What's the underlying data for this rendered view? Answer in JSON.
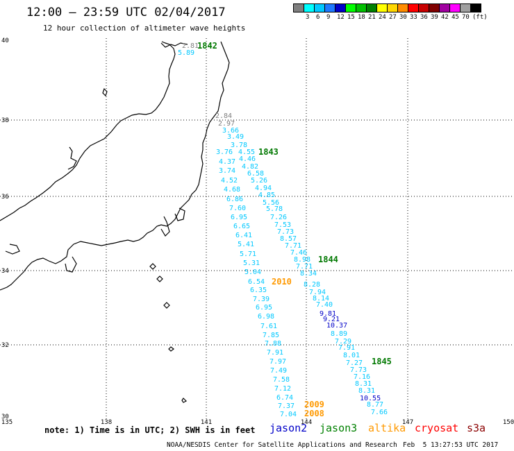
{
  "header": {
    "title": "12:00 – 23:59 UTC 02/04/2017",
    "subtitle": "12 hour collection of altimeter wave heights"
  },
  "legend": {
    "swatches": [
      {
        "color": "#7f7f7f",
        "label": ""
      },
      {
        "color": "#00ffff",
        "label": "3"
      },
      {
        "color": "#00c8ff",
        "label": "6"
      },
      {
        "color": "#1e78ff",
        "label": "9"
      },
      {
        "color": "#0000c8",
        "label": "12"
      },
      {
        "color": "#00ff00",
        "label": "15"
      },
      {
        "color": "#00c000",
        "label": "18"
      },
      {
        "color": "#008000",
        "label": "21"
      },
      {
        "color": "#ffff00",
        "label": "24"
      },
      {
        "color": "#ffd700",
        "label": "27"
      },
      {
        "color": "#ff8c00",
        "label": "30"
      },
      {
        "color": "#ff0000",
        "label": "33"
      },
      {
        "color": "#c80000",
        "label": "36"
      },
      {
        "color": "#800000",
        "label": "39"
      },
      {
        "color": "#a000a0",
        "label": "42"
      },
      {
        "color": "#ff00ff",
        "label": "45"
      },
      {
        "color": "#a0a0a0",
        "label": "70"
      },
      {
        "color": "#000000",
        "label": "(ft)"
      }
    ]
  },
  "map": {
    "lat_ticks": [
      "40",
      "38",
      "36",
      "34",
      "32",
      "30"
    ],
    "lon_ticks": [
      "135",
      "138",
      "141",
      "144",
      "147",
      "150"
    ],
    "track_times": [
      {
        "text": "1842",
        "color": "#007800"
      },
      {
        "text": "1843",
        "color": "#007800"
      },
      {
        "text": "1844",
        "color": "#007800"
      },
      {
        "text": "1845",
        "color": "#007800"
      },
      {
        "text": "2010",
        "color": "#ff9900"
      },
      {
        "text": "2009",
        "color": "#ff9900"
      },
      {
        "text": "2008",
        "color": "#ff9900"
      }
    ],
    "wave_heights": [
      {
        "v": "2.81",
        "c": "#7f7f7f"
      },
      {
        "v": "5.89",
        "c": "#00c8ff"
      },
      {
        "v": "2.84",
        "c": "#7f7f7f"
      },
      {
        "v": "2.97",
        "c": "#7f7f7f"
      },
      {
        "v": "3.66",
        "c": "#00c8ff"
      },
      {
        "v": "3.49",
        "c": "#00c8ff"
      },
      {
        "v": "3.78",
        "c": "#00c8ff"
      },
      {
        "v": "3.76",
        "c": "#00c8ff"
      },
      {
        "v": "4.55",
        "c": "#00c8ff"
      },
      {
        "v": "4.37",
        "c": "#00c8ff"
      },
      {
        "v": "4.46",
        "c": "#00c8ff"
      },
      {
        "v": "4.82",
        "c": "#00c8ff"
      },
      {
        "v": "3.74",
        "c": "#00c8ff"
      },
      {
        "v": "6.58",
        "c": "#00c8ff"
      },
      {
        "v": "4.52",
        "c": "#00c8ff"
      },
      {
        "v": "5.26",
        "c": "#00c8ff"
      },
      {
        "v": "4.94",
        "c": "#00c8ff"
      },
      {
        "v": "4.68",
        "c": "#00c8ff"
      },
      {
        "v": "4.85",
        "c": "#00c8ff"
      },
      {
        "v": "6.86",
        "c": "#00c8ff"
      },
      {
        "v": "5.56",
        "c": "#00c8ff"
      },
      {
        "v": "7.60",
        "c": "#00c8ff"
      },
      {
        "v": "5.78",
        "c": "#00c8ff"
      },
      {
        "v": "6.95",
        "c": "#00c8ff"
      },
      {
        "v": "7.26",
        "c": "#00c8ff"
      },
      {
        "v": "6.65",
        "c": "#00c8ff"
      },
      {
        "v": "7.53",
        "c": "#00c8ff"
      },
      {
        "v": "6.41",
        "c": "#00c8ff"
      },
      {
        "v": "7.73",
        "c": "#00c8ff"
      },
      {
        "v": "8.57",
        "c": "#00c8ff"
      },
      {
        "v": "5.41",
        "c": "#00c8ff"
      },
      {
        "v": "7.71",
        "c": "#00c8ff"
      },
      {
        "v": "5.71",
        "c": "#00c8ff"
      },
      {
        "v": "7.46",
        "c": "#00c8ff"
      },
      {
        "v": "8.98",
        "c": "#00c8ff"
      },
      {
        "v": "5.31",
        "c": "#00c8ff"
      },
      {
        "v": "7.71",
        "c": "#00c8ff"
      },
      {
        "v": "5.04",
        "c": "#00c8ff"
      },
      {
        "v": "8.34",
        "c": "#00c8ff"
      },
      {
        "v": "6.54",
        "c": "#00c8ff"
      },
      {
        "v": "8.28",
        "c": "#00c8ff"
      },
      {
        "v": "6.35",
        "c": "#00c8ff"
      },
      {
        "v": "7.94",
        "c": "#00c8ff"
      },
      {
        "v": "7.39",
        "c": "#00c8ff"
      },
      {
        "v": "8.14",
        "c": "#00c8ff"
      },
      {
        "v": "6.95",
        "c": "#00c8ff"
      },
      {
        "v": "7.40",
        "c": "#00c8ff"
      },
      {
        "v": "9.81",
        "c": "#0000c8"
      },
      {
        "v": "6.98",
        "c": "#00c8ff"
      },
      {
        "v": "9.21",
        "c": "#0000c8"
      },
      {
        "v": "7.61",
        "c": "#00c8ff"
      },
      {
        "v": "10.37",
        "c": "#0000c8"
      },
      {
        "v": "7.85",
        "c": "#00c8ff"
      },
      {
        "v": "8.89",
        "c": "#00c8ff"
      },
      {
        "v": "7.88",
        "c": "#00c8ff"
      },
      {
        "v": "7.29",
        "c": "#00c8ff"
      },
      {
        "v": "7.91",
        "c": "#00c8ff"
      },
      {
        "v": "7.91",
        "c": "#00c8ff"
      },
      {
        "v": "8.01",
        "c": "#00c8ff"
      },
      {
        "v": "7.97",
        "c": "#00c8ff"
      },
      {
        "v": "7.27",
        "c": "#00c8ff"
      },
      {
        "v": "7.49",
        "c": "#00c8ff"
      },
      {
        "v": "7.73",
        "c": "#00c8ff"
      },
      {
        "v": "7.16",
        "c": "#00c8ff"
      },
      {
        "v": "7.58",
        "c": "#00c8ff"
      },
      {
        "v": "8.31",
        "c": "#00c8ff"
      },
      {
        "v": "7.12",
        "c": "#00c8ff"
      },
      {
        "v": "8.31",
        "c": "#00c8ff"
      },
      {
        "v": "6.74",
        "c": "#00c8ff"
      },
      {
        "v": "10.55",
        "c": "#0000c8"
      },
      {
        "v": "7.37",
        "c": "#00c8ff"
      },
      {
        "v": "8.77",
        "c": "#00c8ff"
      },
      {
        "v": "7.04",
        "c": "#00c8ff"
      },
      {
        "v": "7.66",
        "c": "#00c8ff"
      }
    ]
  },
  "footer": {
    "note": "note: 1) Time is in UTC; 2) SWH is in feet",
    "satellites": [
      {
        "name": "jason2",
        "color": "#0000c8"
      },
      {
        "name": "jason3",
        "color": "#008000"
      },
      {
        "name": "altika",
        "color": "#ff9900"
      },
      {
        "name": "cryosat",
        "color": "#ff0000"
      },
      {
        "name": "s3a",
        "color": "#8b0000"
      }
    ],
    "credit": "NOAA/NESDIS Center for Satellite Applications and Research",
    "timestamp": "Feb  5 13:27:53 UTC 2017"
  }
}
